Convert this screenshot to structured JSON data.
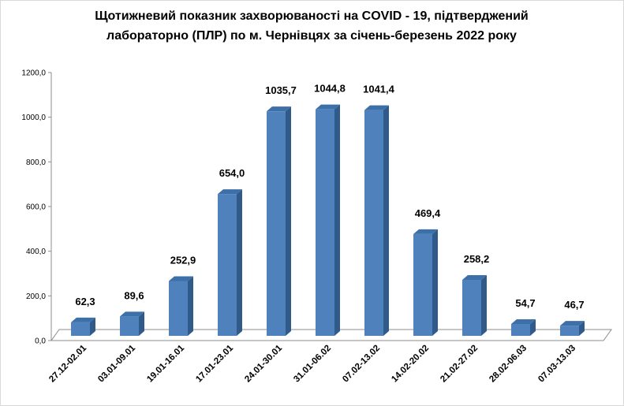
{
  "chart_data": {
    "type": "bar",
    "title_line1": "Щотижневий показник захворюваності на COVID - 19, підтверджений",
    "title_line2": "лабораторно (ПЛР) по м. Чернівцях за січень-березень 2022 року",
    "categories": [
      "27.12-02.01",
      "03.01-09.01",
      "19.01-16.01",
      "17.01-23.01",
      "24.01-30.01",
      "31.01-06.02",
      "07.02-13.02",
      "14.02-20.02",
      "21.02-27.02",
      "28.02-06.03",
      "07.03-13.03"
    ],
    "values": [
      62.3,
      89.6,
      252.9,
      654.0,
      1035.7,
      1044.8,
      1041.4,
      469.4,
      258.2,
      54.7,
      46.7
    ],
    "data_labels": [
      "62,3",
      "89,6",
      "252,9",
      "654,0",
      "1035,7",
      "1044,8",
      "1041,4",
      "469,4",
      "258,2",
      "54,7",
      "46,7"
    ],
    "yticks": [
      0,
      200,
      400,
      600,
      800,
      1000,
      1200
    ],
    "ytick_labels": [
      "0,0",
      "200,0",
      "400,0",
      "600,0",
      "800,0",
      "1000,0",
      "1200,0"
    ],
    "ylim": [
      0,
      1200
    ],
    "bar_color": "#4f81bd",
    "grid": false,
    "legend": false
  }
}
